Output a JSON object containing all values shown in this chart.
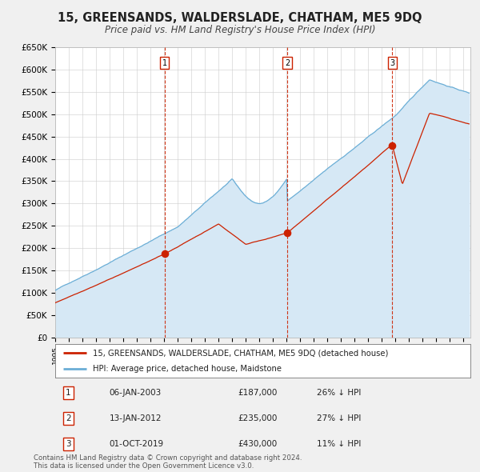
{
  "title": "15, GREENSANDS, WALDERSLADE, CHATHAM, ME5 9DQ",
  "subtitle": "Price paid vs. HM Land Registry's House Price Index (HPI)",
  "hpi_color": "#6baed6",
  "hpi_fill_color": "#d6e8f5",
  "price_color": "#cc2200",
  "sale_marker_color": "#cc2200",
  "background_color": "#f0f0f0",
  "plot_bg_color": "#ffffff",
  "ylim": [
    0,
    650000
  ],
  "yticks": [
    0,
    50000,
    100000,
    150000,
    200000,
    250000,
    300000,
    350000,
    400000,
    450000,
    500000,
    550000,
    600000,
    650000
  ],
  "ytick_labels": [
    "£0",
    "£50K",
    "£100K",
    "£150K",
    "£200K",
    "£250K",
    "£300K",
    "£350K",
    "£400K",
    "£450K",
    "£500K",
    "£550K",
    "£600K",
    "£650K"
  ],
  "xmin": 1995.0,
  "xmax": 2025.5,
  "sales": [
    {
      "year": 2003.03,
      "price": 187000,
      "label": "1"
    },
    {
      "year": 2012.04,
      "price": 235000,
      "label": "2"
    },
    {
      "year": 2019.75,
      "price": 430000,
      "label": "3"
    }
  ],
  "sale_vline_color": "#cc2200",
  "legend_entries": [
    "15, GREENSANDS, WALDERSLADE, CHATHAM, ME5 9DQ (detached house)",
    "HPI: Average price, detached house, Maidstone"
  ],
  "table_entries": [
    {
      "num": "1",
      "date": "06-JAN-2003",
      "price": "£187,000",
      "hpi": "26% ↓ HPI"
    },
    {
      "num": "2",
      "date": "13-JAN-2012",
      "price": "£235,000",
      "hpi": "27% ↓ HPI"
    },
    {
      "num": "3",
      "date": "01-OCT-2019",
      "price": "£430,000",
      "hpi": "11% ↓ HPI"
    }
  ],
  "footnote": "Contains HM Land Registry data © Crown copyright and database right 2024.\nThis data is licensed under the Open Government Licence v3.0."
}
